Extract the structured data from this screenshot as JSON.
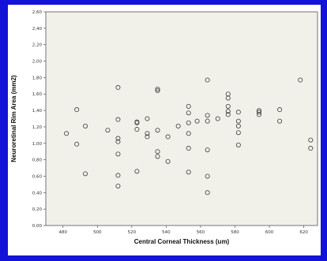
{
  "colors": {
    "page_background": "#1212d8",
    "panel_background": "#ffffff",
    "plot_background": "#f1f1ea",
    "point_stroke": "#3a3a3a",
    "axis": "#555555"
  },
  "chart_data": {
    "type": "scatter",
    "title": "",
    "xlabel": "Central Corneal Thickness (um)",
    "ylabel": "Neuroretinal Rim Area (mm2)",
    "xlim": [
      470,
      628
    ],
    "ylim": [
      0,
      2.6
    ],
    "x_ticks": [
      480,
      500,
      520,
      540,
      560,
      580,
      600,
      620
    ],
    "x_tick_labels": [
      "480",
      "500",
      "520",
      "540",
      "560",
      "580",
      "600",
      "620"
    ],
    "y_ticks": [
      0,
      0.2,
      0.4,
      0.6,
      0.8,
      1.0,
      1.2,
      1.4,
      1.6,
      1.8,
      2.0,
      2.2,
      2.4,
      2.6
    ],
    "y_tick_labels": [
      "0,00",
      "0,20",
      "0,40",
      "0,60",
      "0,80",
      "1,00",
      "1,20",
      "1,40",
      "1,60",
      "1,80",
      "2,00",
      "2,20",
      "2,40",
      "2,60"
    ],
    "grid": false,
    "legend": "none",
    "points": [
      {
        "x": 482,
        "y": 1.12
      },
      {
        "x": 488,
        "y": 1.41
      },
      {
        "x": 488,
        "y": 0.99
      },
      {
        "x": 493,
        "y": 1.21
      },
      {
        "x": 493,
        "y": 0.63
      },
      {
        "x": 506,
        "y": 1.16
      },
      {
        "x": 512,
        "y": 1.68
      },
      {
        "x": 512,
        "y": 1.29
      },
      {
        "x": 512,
        "y": 1.06
      },
      {
        "x": 512,
        "y": 1.02
      },
      {
        "x": 512,
        "y": 0.87
      },
      {
        "x": 512,
        "y": 0.61
      },
      {
        "x": 512,
        "y": 0.48
      },
      {
        "x": 523,
        "y": 1.26
      },
      {
        "x": 523,
        "y": 1.25
      },
      {
        "x": 523,
        "y": 1.17
      },
      {
        "x": 523,
        "y": 0.66
      },
      {
        "x": 529,
        "y": 1.3
      },
      {
        "x": 529,
        "y": 1.12
      },
      {
        "x": 529,
        "y": 1.08
      },
      {
        "x": 535,
        "y": 1.66
      },
      {
        "x": 535,
        "y": 1.64
      },
      {
        "x": 535,
        "y": 1.16
      },
      {
        "x": 535,
        "y": 0.9
      },
      {
        "x": 535,
        "y": 0.84
      },
      {
        "x": 541,
        "y": 1.08
      },
      {
        "x": 541,
        "y": 0.78
      },
      {
        "x": 547,
        "y": 1.21
      },
      {
        "x": 553,
        "y": 1.45
      },
      {
        "x": 553,
        "y": 1.37
      },
      {
        "x": 553,
        "y": 1.25
      },
      {
        "x": 553,
        "y": 1.12
      },
      {
        "x": 553,
        "y": 0.94
      },
      {
        "x": 553,
        "y": 0.65
      },
      {
        "x": 558,
        "y": 1.27
      },
      {
        "x": 564,
        "y": 1.77
      },
      {
        "x": 564,
        "y": 1.34
      },
      {
        "x": 564,
        "y": 1.27
      },
      {
        "x": 564,
        "y": 0.92
      },
      {
        "x": 564,
        "y": 0.6
      },
      {
        "x": 564,
        "y": 0.4
      },
      {
        "x": 570,
        "y": 1.3
      },
      {
        "x": 576,
        "y": 1.6
      },
      {
        "x": 576,
        "y": 1.55
      },
      {
        "x": 576,
        "y": 1.45
      },
      {
        "x": 576,
        "y": 1.39
      },
      {
        "x": 576,
        "y": 1.35
      },
      {
        "x": 582,
        "y": 1.38
      },
      {
        "x": 582,
        "y": 1.27
      },
      {
        "x": 582,
        "y": 1.21
      },
      {
        "x": 582,
        "y": 1.13
      },
      {
        "x": 582,
        "y": 0.98
      },
      {
        "x": 594,
        "y": 1.4
      },
      {
        "x": 594,
        "y": 1.38
      },
      {
        "x": 594,
        "y": 1.35
      },
      {
        "x": 606,
        "y": 1.41
      },
      {
        "x": 606,
        "y": 1.27
      },
      {
        "x": 618,
        "y": 1.77
      },
      {
        "x": 624,
        "y": 1.04
      },
      {
        "x": 624,
        "y": 0.94
      }
    ]
  }
}
